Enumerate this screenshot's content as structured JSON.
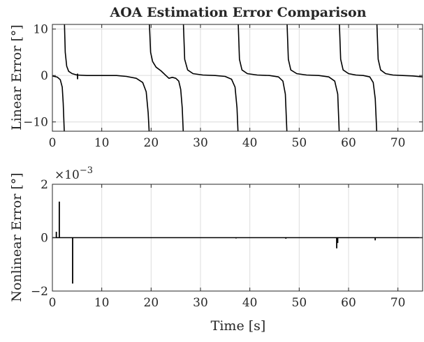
{
  "chart_data": [
    {
      "type": "line",
      "title": "AOA Estimation Error Comparison",
      "ylabel": "Linear Error [°]",
      "xlabel": "",
      "xlim": [
        0,
        75
      ],
      "ylim": [
        -12,
        11
      ],
      "xticks": [
        0,
        10,
        20,
        30,
        40,
        50,
        60,
        70
      ],
      "yticks": [
        -10,
        0,
        10
      ],
      "grid": true,
      "color": "#000000",
      "branches": [
        {
          "x": [
            0,
            1.0,
            1.6,
            2.0,
            2.2,
            2.4
          ],
          "y": [
            -0.1,
            -0.35,
            -0.9,
            -2.5,
            -6.0,
            -12.0
          ]
        },
        {
          "x": [
            2.45,
            2.6,
            2.9,
            3.3,
            4.0,
            5.0,
            7.0,
            10.0,
            13.0,
            15.0,
            17.0,
            18.3,
            19.0,
            19.4,
            19.6
          ],
          "y": [
            11.0,
            5.0,
            2.0,
            0.9,
            0.4,
            0.1,
            0.0,
            0.0,
            0.0,
            -0.2,
            -0.6,
            -1.5,
            -3.5,
            -8.0,
            -12.0
          ]
        },
        {
          "x": [
            19.65,
            19.9,
            20.3,
            21.0,
            22.0,
            23.0,
            23.6,
            24.3,
            25.0,
            25.6,
            26.0,
            26.3,
            26.5
          ],
          "y": [
            11.0,
            5.0,
            3.0,
            1.8,
            1.0,
            0.0,
            -0.6,
            -0.4,
            -0.6,
            -1.2,
            -3.0,
            -7.0,
            -12.0
          ]
        },
        {
          "x": [
            26.55,
            26.8,
            27.4,
            28.5,
            30.5,
            33.0,
            35.0,
            36.3,
            37.0,
            37.4,
            37.6
          ],
          "y": [
            11.0,
            3.5,
            1.2,
            0.4,
            0.1,
            0.0,
            -0.2,
            -0.8,
            -2.5,
            -7.0,
            -12.0
          ]
        },
        {
          "x": [
            37.65,
            37.9,
            38.4,
            39.5,
            41.5,
            44.0,
            45.8,
            46.7,
            47.2,
            47.5
          ],
          "y": [
            11.0,
            3.5,
            1.2,
            0.4,
            0.1,
            0.0,
            -0.3,
            -1.2,
            -4.0,
            -12.0
          ]
        },
        {
          "x": [
            47.55,
            47.8,
            48.3,
            49.5,
            51.5,
            54.0,
            56.0,
            57.2,
            57.8,
            58.1
          ],
          "y": [
            11.0,
            3.5,
            1.2,
            0.4,
            0.1,
            0.0,
            -0.3,
            -1.2,
            -4.0,
            -12.0
          ]
        },
        {
          "x": [
            58.15,
            58.4,
            58.9,
            60.0,
            61.5,
            63.0,
            64.3,
            65.0,
            65.4,
            65.7
          ],
          "y": [
            11.0,
            3.5,
            1.2,
            0.4,
            0.1,
            0.0,
            -0.3,
            -1.5,
            -5.0,
            -12.0
          ]
        },
        {
          "x": [
            65.75,
            66.0,
            66.5,
            67.5,
            69.0,
            71.0,
            73.0,
            75.0
          ],
          "y": [
            11.0,
            3.5,
            1.2,
            0.4,
            0.1,
            0.0,
            -0.1,
            -0.3
          ]
        }
      ],
      "spikes": [
        {
          "x": 5.1,
          "from": 0.4,
          "to": -0.8
        }
      ]
    },
    {
      "type": "line",
      "title": "",
      "ylabel": "Nonlinear Error [°]",
      "xlabel": "Time [s]",
      "xlim": [
        0,
        75
      ],
      "ylim": [
        -2,
        2
      ],
      "xticks": [
        0,
        10,
        20,
        30,
        40,
        50,
        60,
        70
      ],
      "yticks": [
        -2,
        0,
        2
      ],
      "exponent_label": "×10",
      "exponent_power": "−3",
      "grid": true,
      "color": "#000000",
      "baseline": {
        "x": [
          0,
          75
        ],
        "y": [
          0,
          0
        ]
      },
      "spikes": [
        {
          "x": 0.8,
          "from": 0,
          "to": 0.22
        },
        {
          "x": 1.4,
          "from": 0,
          "to": 1.35
        },
        {
          "x": 4.1,
          "from": 0,
          "to": -1.72
        },
        {
          "x": 57.6,
          "from": 0,
          "to": -0.4
        },
        {
          "x": 57.8,
          "from": 0,
          "to": -0.2
        },
        {
          "x": 65.4,
          "from": 0,
          "to": -0.1
        },
        {
          "x": 47.3,
          "from": 0,
          "to": -0.04
        },
        {
          "x": 37.2,
          "from": 0,
          "to": -0.03
        }
      ]
    }
  ]
}
